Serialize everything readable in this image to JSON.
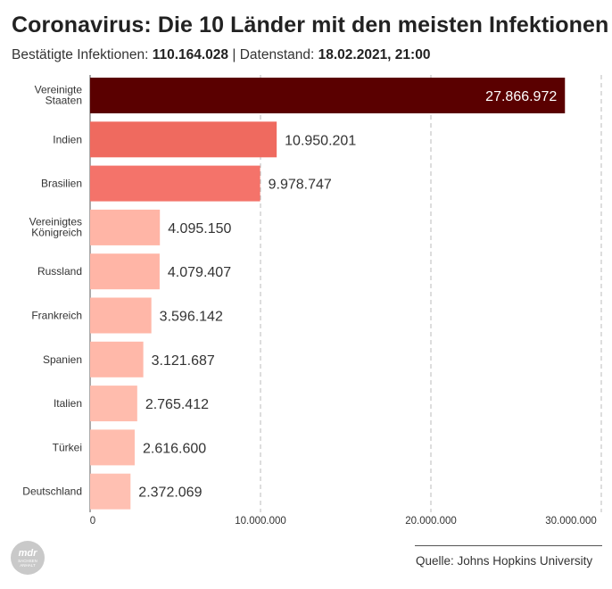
{
  "header": {
    "title": "Coronavirus: Die 10 Länder mit den meisten Infektionen",
    "subtitle_prefix": "Bestätigte Infektionen:",
    "total": "110.164.028",
    "separator": "|",
    "date_prefix": "Datenstand:",
    "date": "18.02.2021, 21:00"
  },
  "footer": {
    "source": "Quelle: Johns Hopkins University",
    "logo_main": "mdr",
    "logo_sub1": "SACHSEN",
    "logo_sub2": "ANHALT"
  },
  "chart_data": {
    "type": "bar",
    "orientation": "horizontal",
    "categories": [
      [
        "Vereinigte",
        "Staaten"
      ],
      [
        "Indien"
      ],
      [
        "Brasilien"
      ],
      [
        "Vereinigtes",
        "Königreich"
      ],
      [
        "Russland"
      ],
      [
        "Frankreich"
      ],
      [
        "Spanien"
      ],
      [
        "Italien"
      ],
      [
        "Türkei"
      ],
      [
        "Deutschland"
      ]
    ],
    "values": [
      27866972,
      10950201,
      9978747,
      4095150,
      4079407,
      3596142,
      3121687,
      2765412,
      2616600,
      2372069
    ],
    "value_labels": [
      "27.866.972",
      "10.950.201",
      "9.978.747",
      "4.095.150",
      "4.079.407",
      "3.596.142",
      "3.121.687",
      "2.765.412",
      "2.616.600",
      "2.372.069"
    ],
    "colors": [
      "#5a0000",
      "#ef6a5f",
      "#f4736a",
      "#ffb5a6",
      "#ffb5a6",
      "#ffb7a8",
      "#ffb8a9",
      "#ffbcad",
      "#ffbdae",
      "#ffc0b2"
    ],
    "xlim": [
      0,
      30000000
    ],
    "ticks": [
      0,
      10000000,
      20000000,
      30000000
    ],
    "tick_labels": [
      "0",
      "10.000.000",
      "20.000.000",
      "30.000.000"
    ],
    "grid": true,
    "grid_style": "dashed",
    "label_inside_first_bar": true
  }
}
